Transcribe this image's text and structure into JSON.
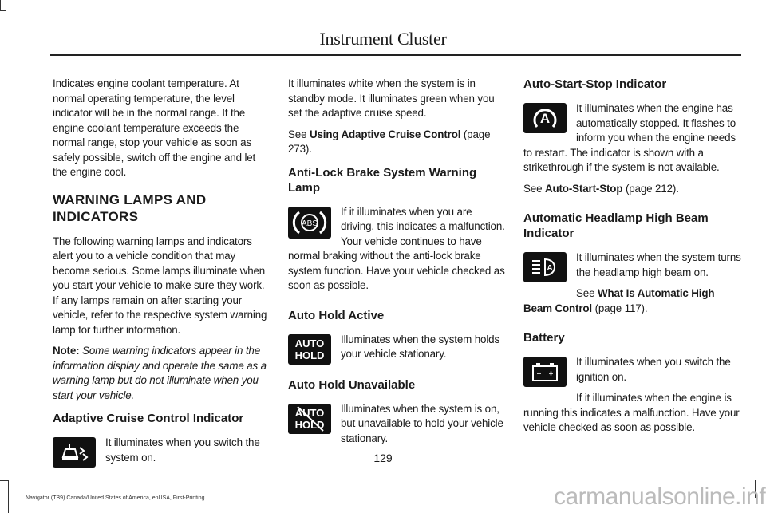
{
  "header": {
    "title": "Instrument Cluster"
  },
  "col1": {
    "p1": "Indicates engine coolant temperature. At normal operating temperature, the level indicator will be in the normal range. If the engine coolant temperature exceeds the normal range, stop your vehicle as soon as safely possible, switch off the engine and let the engine cool.",
    "heading1": "WARNING LAMPS AND",
    "heading2": "INDICATORS",
    "p2": "The following warning lamps and indicators alert you to a vehicle condition that may become serious.  Some lamps illuminate when you start your vehicle to make sure they work.  If any lamps remain on after starting your vehicle, refer to the respective system warning lamp for further information.",
    "note_label": "Note:",
    "note_text": " Some warning indicators appear in the information display and operate the same as a warning lamp but do not illuminate when you start your vehicle.",
    "acc_heading": "Adaptive Cruise Control Indicator",
    "acc_text": "It illuminates when you switch the system on."
  },
  "col2": {
    "p1": "It illuminates white when the system is in standby mode.  It illuminates green when you set the adaptive cruise speed.",
    "see": "See ",
    "link1": "Using Adaptive Cruise Control",
    "page1": " (page 273).",
    "abs_heading": "Anti-Lock Brake System Warning Lamp",
    "abs_icon_text": "ABS",
    "abs_text": "If it illuminates when you are driving, this indicates a malfunction.  Your vehicle continues to have normal braking without the anti-lock brake system function.  Have your vehicle checked as soon as possible.",
    "ah_heading": "Auto Hold Active",
    "ah_icon_l1": "AUTO",
    "ah_icon_l2": "HOLD",
    "ah_text": "Illuminates when the system holds your vehicle stationary.",
    "ahu_heading": "Auto Hold Unavailable",
    "ahu_text": "Illuminates when the system is on, but unavailable to hold your vehicle stationary."
  },
  "col3": {
    "ass_heading": "Auto-Start-Stop Indicator",
    "ass_icon_text": "A",
    "ass_text": "It illuminates when the engine has automatically stopped.  It flashes to inform you when the engine needs to restart.  The indicator is shown with a strikethrough if the system is not available.",
    "see": "See ",
    "link1": "Auto-Start-Stop",
    "page1": " (page 212).",
    "hb_heading": "Automatic Headlamp High Beam Indicator",
    "hb_text": "It illuminates when the system turns the headlamp high beam on.",
    "see2": "See ",
    "link2": "What Is Automatic High Beam Control",
    "page2": " (page 117).",
    "bat_heading": "Battery",
    "bat_text1": "It illuminates when you switch the ignition on.",
    "bat_text2": "If it illuminates when the engine is running this indicates a malfunction.  Have your vehicle checked as soon as possible."
  },
  "footer": {
    "page_number": "129",
    "edition": "Navigator (TB9) Canada/United States of America, enUSA, First-Printing",
    "watermark": "carmanualsonline.info"
  }
}
